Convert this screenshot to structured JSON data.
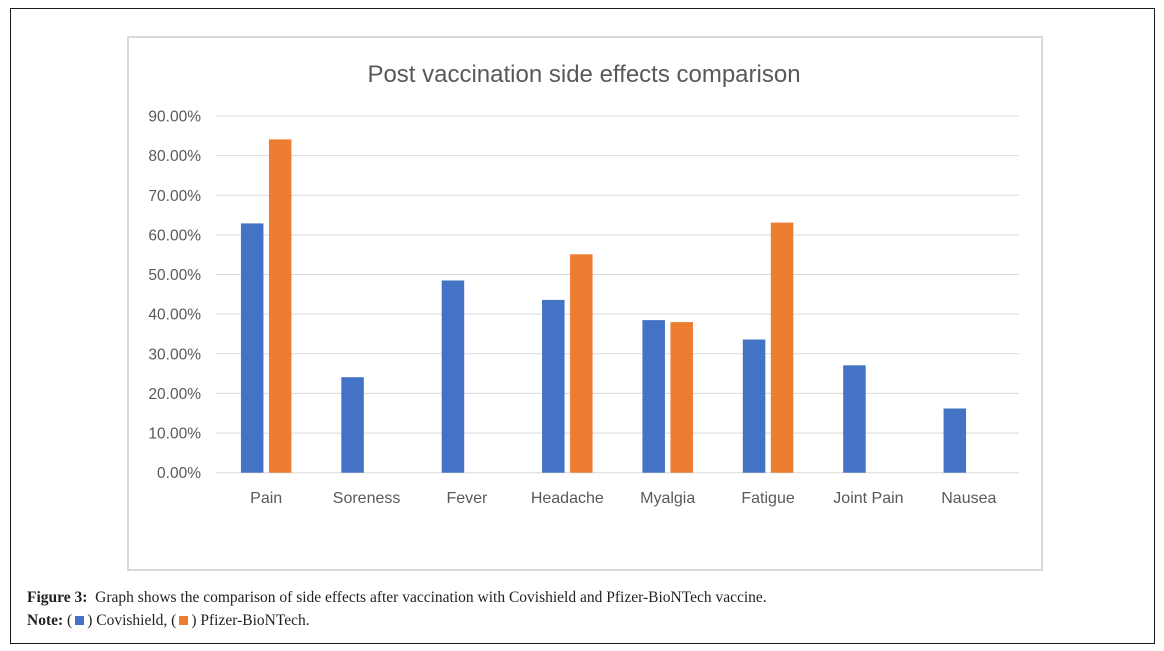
{
  "chart_data": {
    "type": "bar",
    "title": "Post vaccination side effects comparison",
    "xlabel": "",
    "ylabel": "",
    "categories": [
      "Pain",
      "Soreness",
      "Fever",
      "Headache",
      "Myalgia",
      "Fatigue",
      "Joint Pain",
      "Nausea"
    ],
    "series": [
      {
        "name": "Covishield",
        "color": "#4472C4",
        "values": [
          62.9,
          24.1,
          48.5,
          43.6,
          38.5,
          33.6,
          27.1,
          16.2
        ]
      },
      {
        "name": "Pfizer-BioNTech",
        "color": "#ED7D31",
        "values": [
          84.1,
          null,
          null,
          55.1,
          38.0,
          63.1,
          null,
          null
        ]
      }
    ],
    "ylim": [
      0,
      90
    ],
    "yticks": [
      0,
      10,
      20,
      30,
      40,
      50,
      60,
      70,
      80,
      90
    ],
    "ytick_labels": [
      "0.00%",
      "10.00%",
      "20.00%",
      "30.00%",
      "40.00%",
      "50.00%",
      "60.00%",
      "70.00%",
      "80.00%",
      "90.00%"
    ],
    "grid": true,
    "legend": "none"
  },
  "caption": {
    "figure_label": "Figure 3:",
    "figure_text": "Graph shows the comparison of side effects after vaccination with Covishield and Pfizer-BioNTech vaccine.",
    "note_label": "Note:",
    "note_open1": "(",
    "note_series1": ") Covishield, (",
    "note_series2": ") Pfizer-BioNTech."
  }
}
